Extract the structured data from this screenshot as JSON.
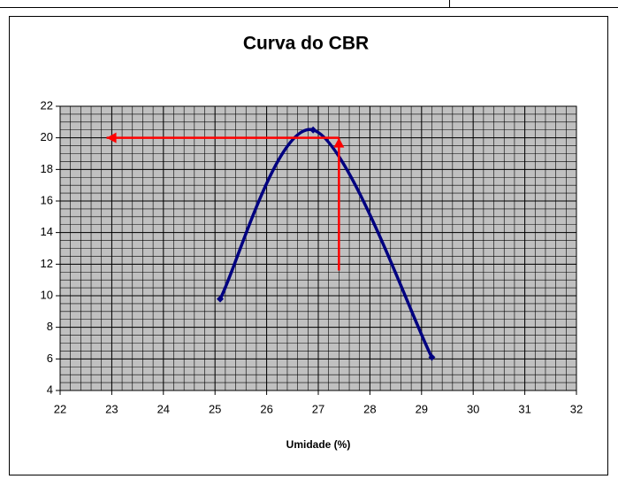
{
  "chart_data": {
    "type": "scatter",
    "title": "Curva do CBR",
    "x_label": "Umidade (%)",
    "series": [
      {
        "color": "#000080",
        "x": [
          25.1,
          26.9,
          29.2
        ],
        "values": [
          9.8,
          20.5,
          6.1
        ]
      }
    ],
    "xlim": [
      22,
      32
    ],
    "xticks": [
      22,
      23,
      24,
      25,
      26,
      27,
      28,
      29,
      30,
      31,
      32
    ],
    "ylim": [
      4,
      22
    ],
    "yticks": [
      4,
      6,
      8,
      10,
      12,
      14,
      16,
      18,
      20,
      22
    ],
    "grid": true,
    "minor_grid": {
      "x": 0.2,
      "y": 0.5
    },
    "smooth": true,
    "guide": {
      "color": "#ff0000",
      "x": [
        27.4,
        27.4,
        22.9
      ],
      "y": [
        11.6,
        20,
        20
      ]
    }
  }
}
